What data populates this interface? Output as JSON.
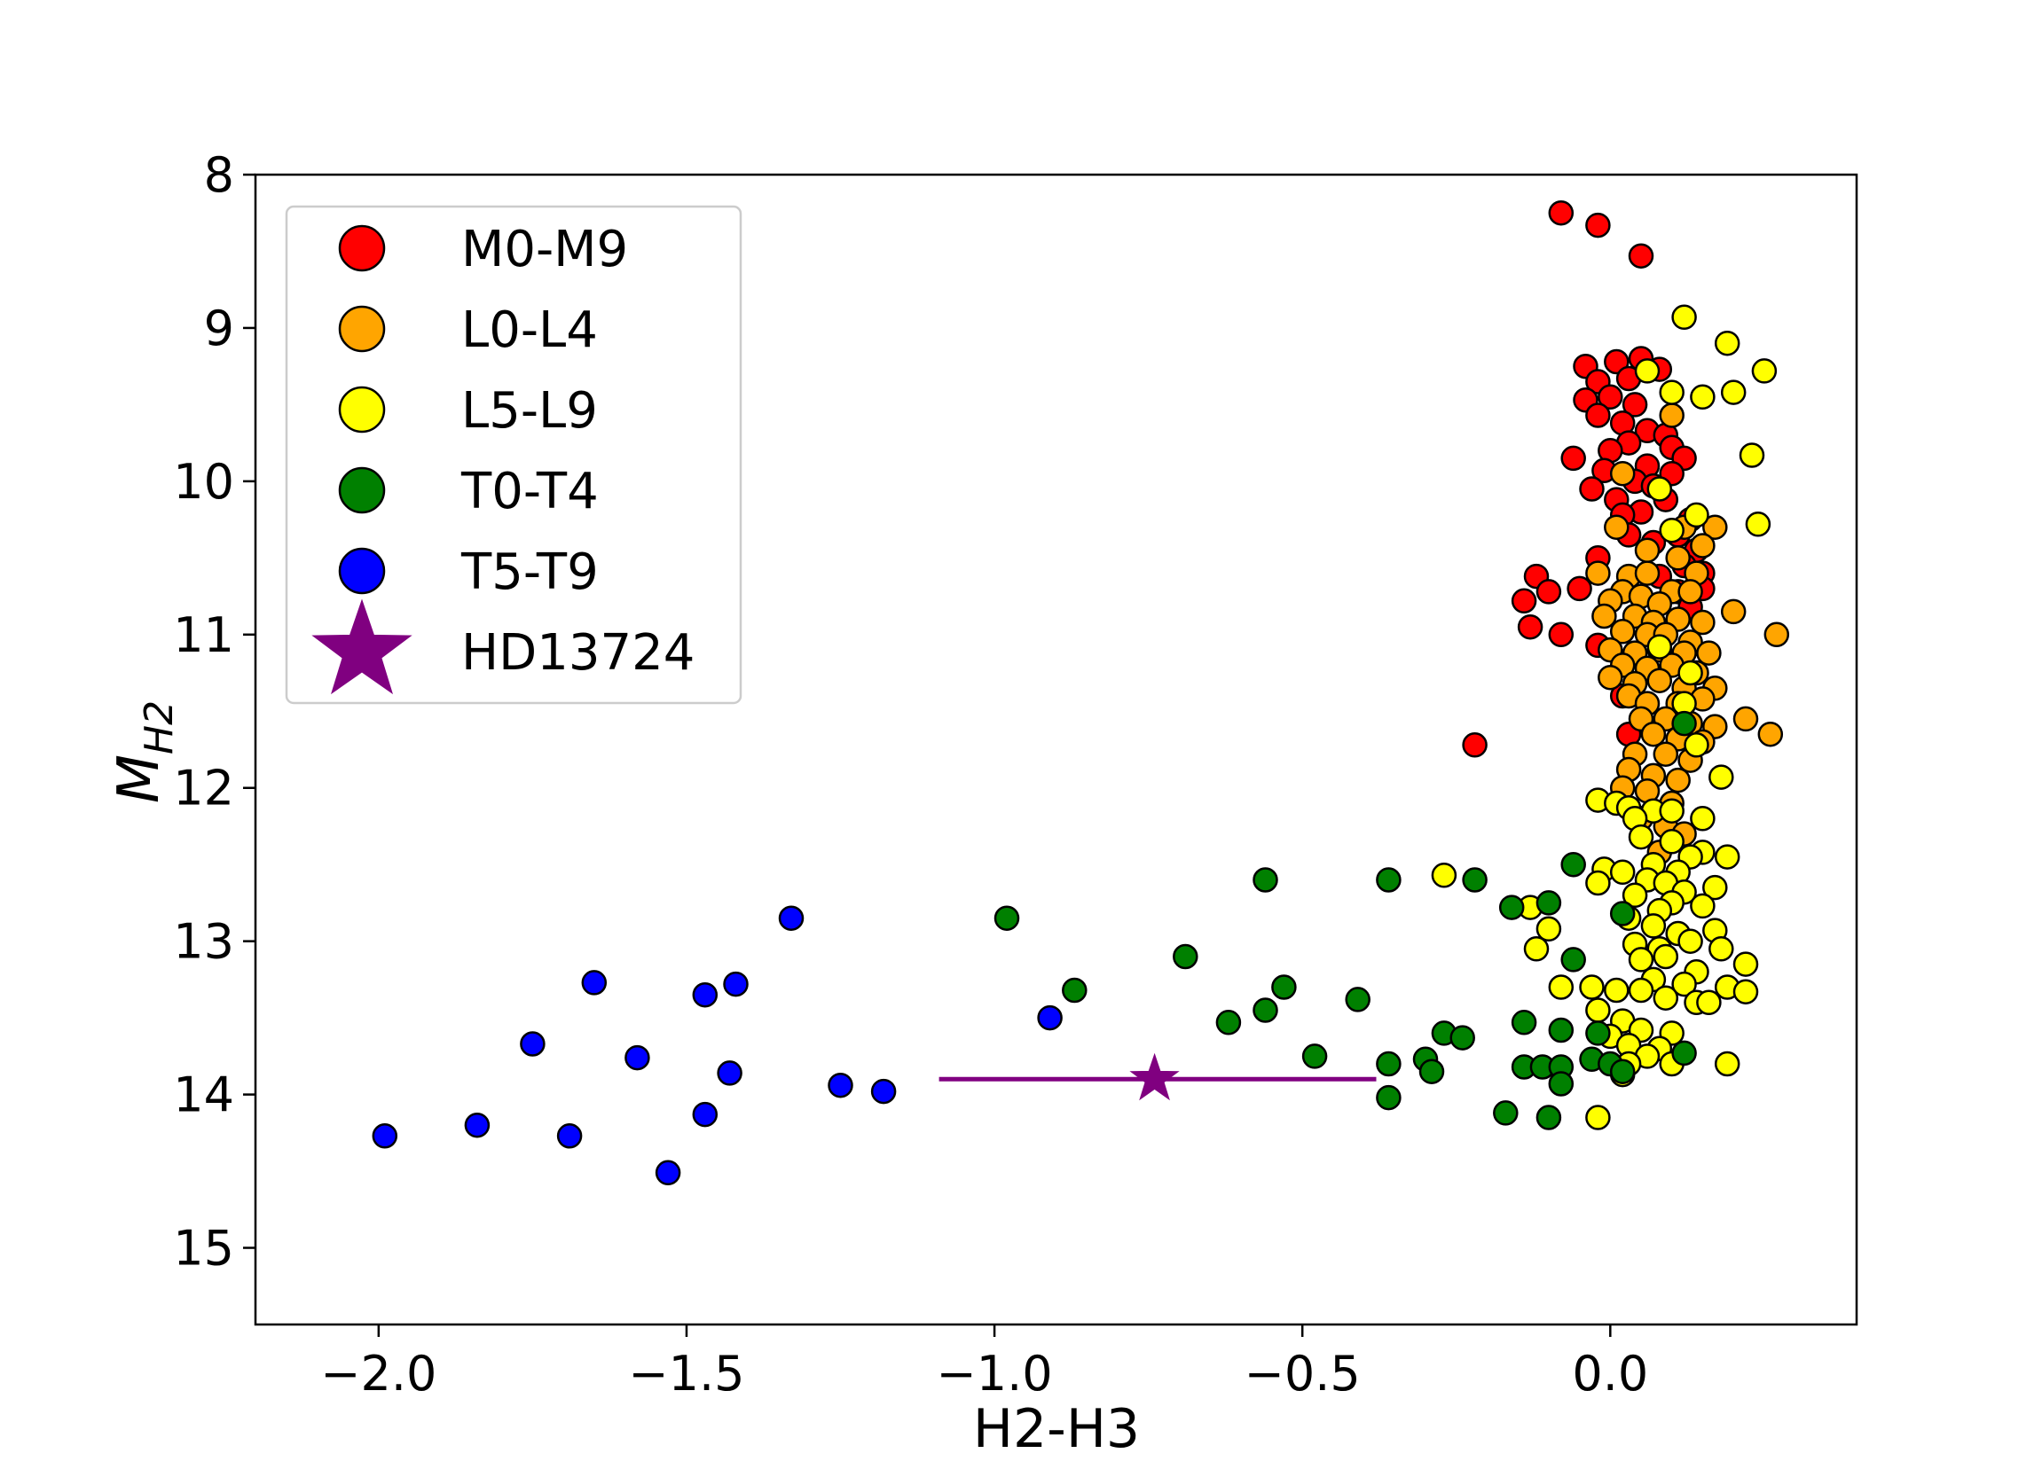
{
  "chart_data": {
    "type": "scatter",
    "xlabel": "H2-H3",
    "ylabel_main": "M",
    "ylabel_sub": "H2",
    "xlim": [
      -2.2,
      0.4
    ],
    "ylim": [
      15.5,
      8.0
    ],
    "y_inverted": true,
    "grid": false,
    "legend_position": "top-left",
    "x_ticks": [
      {
        "value": -2.0,
        "label": "−2.0"
      },
      {
        "value": -1.5,
        "label": "−1.5"
      },
      {
        "value": -1.0,
        "label": "−1.0"
      },
      {
        "value": -0.5,
        "label": "−0.5"
      },
      {
        "value": 0.0,
        "label": "0.0"
      }
    ],
    "y_ticks": [
      {
        "value": 8,
        "label": "8"
      },
      {
        "value": 9,
        "label": "9"
      },
      {
        "value": 10,
        "label": "10"
      },
      {
        "value": 11,
        "label": "11"
      },
      {
        "value": 12,
        "label": "12"
      },
      {
        "value": 13,
        "label": "13"
      },
      {
        "value": 14,
        "label": "14"
      },
      {
        "value": 15,
        "label": "15"
      }
    ],
    "series": [
      {
        "name": "M0-M9",
        "color": "#ff0000",
        "marker": "circle",
        "points": [
          [
            -0.08,
            8.25
          ],
          [
            -0.02,
            8.33
          ],
          [
            0.05,
            8.53
          ],
          [
            -0.04,
            9.25
          ],
          [
            0.01,
            9.22
          ],
          [
            0.05,
            9.2
          ],
          [
            -0.02,
            9.35
          ],
          [
            0.03,
            9.33
          ],
          [
            0.08,
            9.27
          ],
          [
            -0.04,
            9.47
          ],
          [
            0.0,
            9.45
          ],
          [
            0.04,
            9.5
          ],
          [
            -0.02,
            9.57
          ],
          [
            0.02,
            9.62
          ],
          [
            0.06,
            9.67
          ],
          [
            0.09,
            9.7
          ],
          [
            0.1,
            9.78
          ],
          [
            0.03,
            9.75
          ],
          [
            0.0,
            9.8
          ],
          [
            -0.06,
            9.85
          ],
          [
            0.06,
            9.9
          ],
          [
            0.12,
            9.85
          ],
          [
            -0.01,
            9.93
          ],
          [
            0.1,
            9.95
          ],
          [
            0.04,
            10.0
          ],
          [
            -0.03,
            10.05
          ],
          [
            0.07,
            10.03
          ],
          [
            0.01,
            10.12
          ],
          [
            0.09,
            10.12
          ],
          [
            0.05,
            10.2
          ],
          [
            0.02,
            10.22
          ],
          [
            0.13,
            10.25
          ],
          [
            0.11,
            10.35
          ],
          [
            0.03,
            10.35
          ],
          [
            0.07,
            10.4
          ],
          [
            0.14,
            10.45
          ],
          [
            -0.02,
            10.5
          ],
          [
            0.12,
            10.55
          ],
          [
            0.15,
            10.6
          ],
          [
            -0.12,
            10.62
          ],
          [
            0.08,
            10.62
          ],
          [
            -0.1,
            10.72
          ],
          [
            -0.05,
            10.7
          ],
          [
            0.11,
            10.72
          ],
          [
            0.15,
            10.7
          ],
          [
            -0.14,
            10.78
          ],
          [
            0.13,
            10.82
          ],
          [
            -0.13,
            10.95
          ],
          [
            -0.08,
            11.0
          ],
          [
            -0.02,
            11.07
          ],
          [
            0.02,
            11.4
          ],
          [
            0.03,
            11.65
          ],
          [
            -0.22,
            11.72
          ]
        ]
      },
      {
        "name": "L0-L4",
        "color": "#ffa500",
        "marker": "circle",
        "points": [
          [
            0.1,
            9.57
          ],
          [
            0.02,
            9.95
          ],
          [
            0.12,
            10.3
          ],
          [
            0.17,
            10.3
          ],
          [
            0.15,
            10.42
          ],
          [
            0.01,
            10.3
          ],
          [
            0.06,
            10.45
          ],
          [
            0.11,
            10.5
          ],
          [
            -0.02,
            10.6
          ],
          [
            0.03,
            10.62
          ],
          [
            0.06,
            10.6
          ],
          [
            0.14,
            10.6
          ],
          [
            0.02,
            10.72
          ],
          [
            0.05,
            10.75
          ],
          [
            0.1,
            10.72
          ],
          [
            0.13,
            10.72
          ],
          [
            0.0,
            10.78
          ],
          [
            0.08,
            10.8
          ],
          [
            -0.01,
            10.88
          ],
          [
            0.04,
            10.88
          ],
          [
            0.07,
            10.92
          ],
          [
            0.11,
            10.9
          ],
          [
            0.15,
            10.92
          ],
          [
            0.2,
            10.85
          ],
          [
            0.02,
            10.98
          ],
          [
            0.06,
            11.0
          ],
          [
            0.09,
            11.0
          ],
          [
            0.13,
            11.05
          ],
          [
            0.27,
            11.0
          ],
          [
            0.0,
            11.1
          ],
          [
            0.04,
            11.12
          ],
          [
            0.08,
            11.1
          ],
          [
            0.12,
            11.12
          ],
          [
            0.16,
            11.12
          ],
          [
            0.02,
            11.2
          ],
          [
            0.06,
            11.22
          ],
          [
            0.1,
            11.2
          ],
          [
            0.14,
            11.25
          ],
          [
            0.0,
            11.28
          ],
          [
            0.04,
            11.32
          ],
          [
            0.08,
            11.3
          ],
          [
            0.12,
            11.35
          ],
          [
            0.17,
            11.35
          ],
          [
            0.03,
            11.4
          ],
          [
            0.06,
            11.45
          ],
          [
            0.11,
            11.45
          ],
          [
            0.15,
            11.42
          ],
          [
            0.05,
            11.55
          ],
          [
            0.09,
            11.55
          ],
          [
            0.13,
            11.58
          ],
          [
            0.17,
            11.6
          ],
          [
            0.07,
            11.65
          ],
          [
            0.11,
            11.68
          ],
          [
            0.15,
            11.7
          ],
          [
            0.26,
            11.65
          ],
          [
            0.22,
            11.55
          ],
          [
            0.04,
            11.78
          ],
          [
            0.09,
            11.78
          ],
          [
            0.13,
            11.82
          ],
          [
            0.03,
            11.88
          ],
          [
            0.07,
            11.92
          ],
          [
            0.11,
            11.95
          ],
          [
            0.02,
            12.0
          ],
          [
            0.06,
            12.02
          ],
          [
            0.1,
            12.1
          ],
          [
            0.05,
            12.2
          ],
          [
            0.09,
            12.25
          ],
          [
            0.12,
            12.3
          ],
          [
            0.08,
            12.42
          ]
        ]
      },
      {
        "name": "L5-L9",
        "color": "#ffff00",
        "marker": "circle",
        "points": [
          [
            0.12,
            8.93
          ],
          [
            0.19,
            9.1
          ],
          [
            0.25,
            9.28
          ],
          [
            0.06,
            9.28
          ],
          [
            0.1,
            9.42
          ],
          [
            0.15,
            9.45
          ],
          [
            0.2,
            9.42
          ],
          [
            0.23,
            9.83
          ],
          [
            0.08,
            10.05
          ],
          [
            0.14,
            10.22
          ],
          [
            0.24,
            10.28
          ],
          [
            0.1,
            10.32
          ],
          [
            0.08,
            11.08
          ],
          [
            0.13,
            11.25
          ],
          [
            0.12,
            11.45
          ],
          [
            0.14,
            11.72
          ],
          [
            0.18,
            11.93
          ],
          [
            0.15,
            12.2
          ],
          [
            -0.02,
            12.08
          ],
          [
            0.01,
            12.1
          ],
          [
            0.03,
            12.13
          ],
          [
            0.07,
            12.15
          ],
          [
            0.1,
            12.15
          ],
          [
            0.04,
            12.2
          ],
          [
            0.05,
            12.32
          ],
          [
            0.1,
            12.35
          ],
          [
            0.15,
            12.42
          ],
          [
            0.19,
            12.45
          ],
          [
            0.13,
            12.45
          ],
          [
            0.07,
            12.5
          ],
          [
            -0.01,
            12.53
          ],
          [
            0.02,
            12.55
          ],
          [
            0.11,
            12.55
          ],
          [
            -0.27,
            12.57
          ],
          [
            0.06,
            12.6
          ],
          [
            -0.02,
            12.62
          ],
          [
            0.09,
            12.62
          ],
          [
            0.12,
            12.68
          ],
          [
            0.17,
            12.65
          ],
          [
            0.04,
            12.7
          ],
          [
            0.1,
            12.75
          ],
          [
            0.15,
            12.77
          ],
          [
            0.08,
            12.8
          ],
          [
            0.03,
            12.85
          ],
          [
            0.07,
            12.9
          ],
          [
            0.11,
            12.95
          ],
          [
            0.17,
            12.93
          ],
          [
            -0.13,
            12.78
          ],
          [
            -0.1,
            12.92
          ],
          [
            -0.12,
            13.05
          ],
          [
            0.04,
            13.02
          ],
          [
            0.08,
            13.05
          ],
          [
            0.13,
            13.0
          ],
          [
            0.18,
            13.05
          ],
          [
            0.05,
            13.12
          ],
          [
            0.09,
            13.1
          ],
          [
            0.14,
            13.2
          ],
          [
            0.22,
            13.15
          ],
          [
            0.07,
            13.25
          ],
          [
            0.12,
            13.28
          ],
          [
            0.19,
            13.3
          ],
          [
            -0.03,
            13.3
          ],
          [
            0.01,
            13.32
          ],
          [
            0.05,
            13.32
          ],
          [
            0.09,
            13.37
          ],
          [
            0.14,
            13.4
          ],
          [
            0.22,
            13.33
          ],
          [
            0.16,
            13.4
          ],
          [
            -0.02,
            13.45
          ],
          [
            0.02,
            13.52
          ],
          [
            -0.08,
            13.3
          ],
          [
            0.05,
            13.58
          ],
          [
            0.1,
            13.6
          ],
          [
            0.0,
            13.62
          ],
          [
            0.03,
            13.68
          ],
          [
            0.08,
            13.7
          ],
          [
            0.06,
            13.75
          ],
          [
            0.03,
            13.8
          ],
          [
            0.1,
            13.8
          ],
          [
            0.19,
            13.8
          ],
          [
            0.02,
            13.87
          ],
          [
            -0.02,
            14.15
          ]
        ]
      },
      {
        "name": "T0-T4",
        "color": "#008000",
        "marker": "circle",
        "points": [
          [
            -0.36,
            12.6
          ],
          [
            -0.56,
            12.6
          ],
          [
            -0.22,
            12.6
          ],
          [
            -0.06,
            12.5
          ],
          [
            -0.16,
            12.78
          ],
          [
            -0.1,
            12.75
          ],
          [
            -0.98,
            12.85
          ],
          [
            0.02,
            12.82
          ],
          [
            -0.69,
            13.1
          ],
          [
            -0.06,
            13.12
          ],
          [
            -0.87,
            13.32
          ],
          [
            -0.53,
            13.3
          ],
          [
            -0.41,
            13.38
          ],
          [
            -0.56,
            13.45
          ],
          [
            -0.62,
            13.53
          ],
          [
            -0.14,
            13.53
          ],
          [
            -0.08,
            13.58
          ],
          [
            -0.27,
            13.6
          ],
          [
            -0.24,
            13.63
          ],
          [
            -0.02,
            13.6
          ],
          [
            -0.48,
            13.75
          ],
          [
            -0.3,
            13.77
          ],
          [
            -0.36,
            13.8
          ],
          [
            -0.29,
            13.85
          ],
          [
            -0.14,
            13.82
          ],
          [
            -0.11,
            13.82
          ],
          [
            -0.08,
            13.82
          ],
          [
            -0.03,
            13.77
          ],
          [
            0.0,
            13.8
          ],
          [
            0.02,
            13.85
          ],
          [
            0.12,
            13.73
          ],
          [
            -0.08,
            13.93
          ],
          [
            -0.36,
            14.02
          ],
          [
            -0.17,
            14.12
          ],
          [
            -0.1,
            14.15
          ],
          [
            0.12,
            11.58
          ]
        ]
      },
      {
        "name": "T5-T9",
        "color": "#0000ff",
        "marker": "circle",
        "points": [
          [
            -1.33,
            12.85
          ],
          [
            -1.65,
            13.27
          ],
          [
            -1.42,
            13.28
          ],
          [
            -1.47,
            13.35
          ],
          [
            -0.91,
            13.5
          ],
          [
            -1.75,
            13.67
          ],
          [
            -1.58,
            13.76
          ],
          [
            -1.43,
            13.86
          ],
          [
            -1.25,
            13.94
          ],
          [
            -1.18,
            13.98
          ],
          [
            -1.47,
            14.13
          ],
          [
            -1.84,
            14.2
          ],
          [
            -1.99,
            14.27
          ],
          [
            -1.69,
            14.27
          ],
          [
            -1.53,
            14.51
          ]
        ]
      },
      {
        "name": "HD13724",
        "color": "#800080",
        "marker": "star",
        "points": [
          [
            -0.74,
            13.9
          ]
        ],
        "xerr_range": [
          -1.09,
          -0.38
        ]
      }
    ]
  }
}
